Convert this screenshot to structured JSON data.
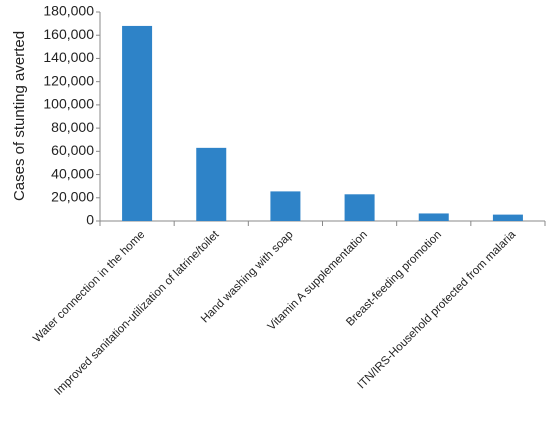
{
  "chart_data": {
    "type": "bar",
    "y_label": "Cases of stunting averted",
    "categories": [
      "Water connection in the home",
      "Improved sanitation-utilization of latrine/toilet",
      "Hand washing with soap",
      "Vitamin A supplementation",
      "Breast-feeding promotion",
      "ITN/IRS-Household protected from malaria"
    ],
    "values": [
      168000,
      63000,
      25500,
      23000,
      6500,
      5500
    ],
    "color": "#2e83c8",
    "ylim": [
      0,
      180000
    ],
    "yticks": [
      0,
      {
        "value": 20000,
        "label": "20,000"
      },
      {
        "value": 40000,
        "label": "40,000"
      },
      {
        "value": 60000,
        "label": "60,000"
      },
      {
        "value": 80000,
        "label": "80,000"
      },
      {
        "value": 100000,
        "label": "100,000"
      },
      {
        "value": 120000,
        "label": "120,000"
      },
      {
        "value": 140000,
        "label": "140,000"
      },
      {
        "value": 160000,
        "label": "160,000"
      },
      {
        "value": 180000,
        "label": "180,000"
      }
    ],
    "grid": false
  }
}
